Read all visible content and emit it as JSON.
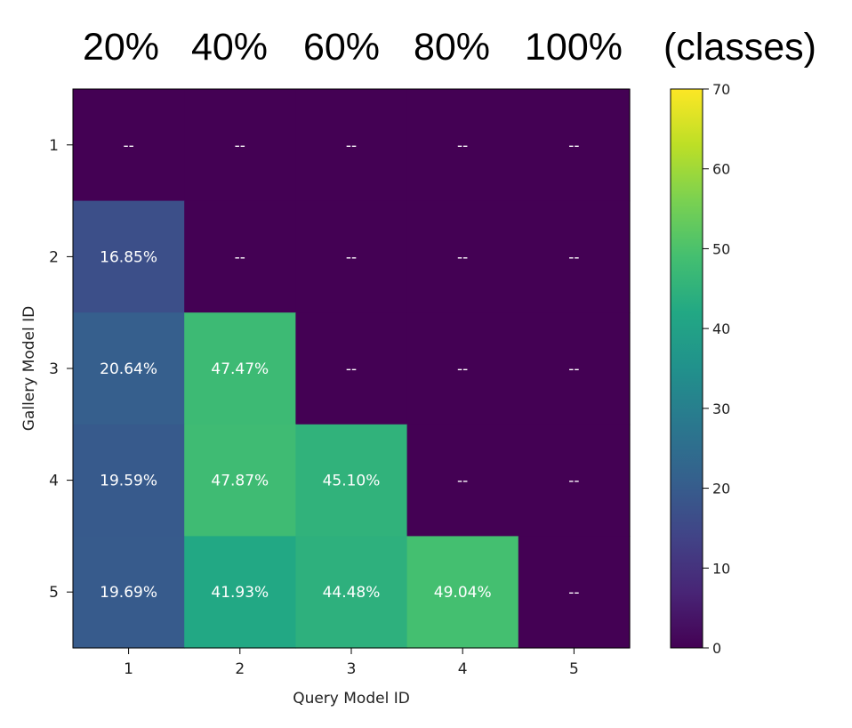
{
  "chart_data": {
    "type": "heatmap",
    "column_headers": [
      "20%",
      "40%",
      "60%",
      "80%",
      "100%",
      "(classes)"
    ],
    "xlabel": "Query Model ID",
    "ylabel": "Gallery Model ID",
    "x_ticks": [
      "1",
      "2",
      "3",
      "4",
      "5"
    ],
    "y_ticks": [
      "1",
      "2",
      "3",
      "4",
      "5"
    ],
    "values": [
      [
        0,
        0,
        0,
        0,
        0
      ],
      [
        16.85,
        0,
        0,
        0,
        0
      ],
      [
        20.64,
        47.47,
        0,
        0,
        0
      ],
      [
        19.59,
        47.87,
        45.1,
        0,
        0
      ],
      [
        19.69,
        41.93,
        44.48,
        49.04,
        0
      ]
    ],
    "labels": [
      [
        "--",
        "--",
        "--",
        "--",
        "--"
      ],
      [
        "16.85%",
        "--",
        "--",
        "--",
        "--"
      ],
      [
        "20.64%",
        "47.47%",
        "--",
        "--",
        "--"
      ],
      [
        "19.59%",
        "47.87%",
        "45.10%",
        "--",
        "--"
      ],
      [
        "19.69%",
        "41.93%",
        "44.48%",
        "49.04%",
        "--"
      ]
    ],
    "colorbar": {
      "range": [
        0,
        70
      ],
      "ticks": [
        "0",
        "10",
        "20",
        "30",
        "40",
        "50",
        "60",
        "70"
      ],
      "colormap": "viridis"
    },
    "grid": false,
    "legend": "none"
  }
}
